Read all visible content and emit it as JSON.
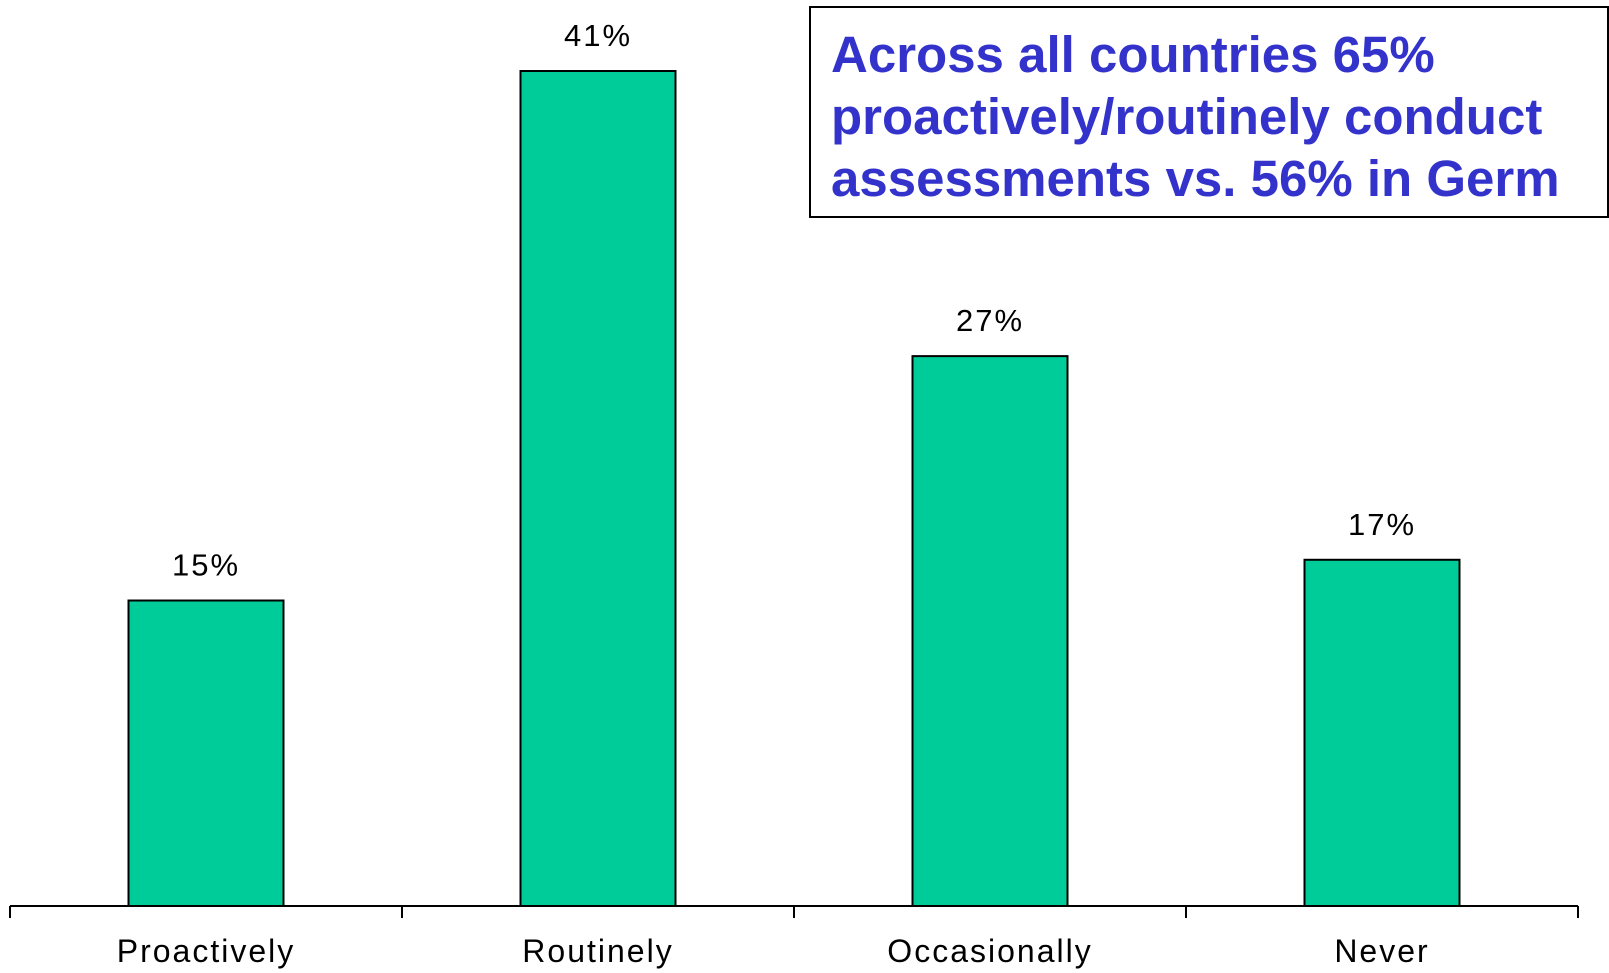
{
  "colors": {
    "bar_fill": "#00cc99",
    "bar_stroke": "#000000",
    "axis": "#000000",
    "callout_text": "#3333cc",
    "callout_border": "#000000",
    "background": "#ffffff"
  },
  "callout": {
    "lines": [
      "Across all countries 65%",
      "proactively/routinely conduct",
      "assessments vs. 56% in Germ"
    ]
  },
  "chart_data": {
    "type": "bar",
    "categories": [
      "Proactively",
      "Routinely",
      "Occasionally",
      "Never"
    ],
    "values": [
      15,
      41,
      27,
      17
    ],
    "value_labels": [
      "15%",
      "41%",
      "27%",
      "17%"
    ],
    "title": "",
    "xlabel": "",
    "ylabel": "",
    "ylim": [
      0,
      41
    ],
    "grid": false,
    "legend": "none"
  }
}
